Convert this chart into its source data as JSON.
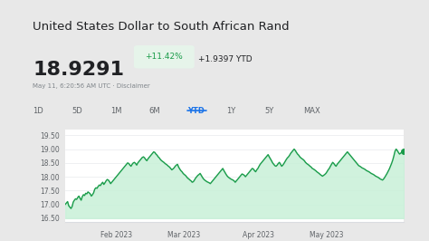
{
  "title": "United States Dollar to South African Rand",
  "current_value": "18.9291",
  "pct_change": "+11.42%",
  "abs_change": "+1.9397 YTD",
  "date_label": "May 11, 6:20:56 AM UTC · Disclaimer",
  "tabs": [
    "1D",
    "5D",
    "1M",
    "6M",
    "YTD",
    "1Y",
    "5Y",
    "MAX"
  ],
  "active_tab": "YTD",
  "x_labels": [
    "Feb 2023",
    "Mar 2023",
    "Apr 2023",
    "May 2023"
  ],
  "y_ticks": [
    16.5,
    17.0,
    17.5,
    18.0,
    18.5,
    19.0,
    19.5
  ],
  "ylim": [
    16.35,
    19.7
  ],
  "line_color": "#1a9c4a",
  "fill_color": "#c8f0d8",
  "dot_color": "#1a9c4a",
  "background_color": "#ffffff",
  "outer_background": "#e8e8e8",
  "tab_active_color": "#1a73e8",
  "pct_badge_bg": "#e6f4ea",
  "pct_badge_color": "#1a9c4a",
  "y_values": [
    17.0,
    17.05,
    17.1,
    16.95,
    16.9,
    16.85,
    16.92,
    17.08,
    17.15,
    17.2,
    17.18,
    17.25,
    17.3,
    17.22,
    17.15,
    17.28,
    17.35,
    17.32,
    17.4,
    17.38,
    17.45,
    17.42,
    17.38,
    17.3,
    17.35,
    17.42,
    17.55,
    17.6,
    17.58,
    17.65,
    17.7,
    17.68,
    17.75,
    17.8,
    17.72,
    17.78,
    17.85,
    17.9,
    17.88,
    17.82,
    17.75,
    17.8,
    17.85,
    17.9,
    17.95,
    18.0,
    18.05,
    18.1,
    18.15,
    18.2,
    18.25,
    18.3,
    18.35,
    18.4,
    18.45,
    18.5,
    18.48,
    18.42,
    18.38,
    18.45,
    18.5,
    18.52,
    18.48,
    18.42,
    18.5,
    18.55,
    18.6,
    18.65,
    18.7,
    18.72,
    18.68,
    18.62,
    18.58,
    18.65,
    18.7,
    18.75,
    18.8,
    18.85,
    18.9,
    18.88,
    18.82,
    18.78,
    18.72,
    18.68,
    18.62,
    18.58,
    18.55,
    18.52,
    18.48,
    18.45,
    18.42,
    18.38,
    18.35,
    18.3,
    18.25,
    18.28,
    18.32,
    18.38,
    18.42,
    18.45,
    18.35,
    18.28,
    18.22,
    18.18,
    18.12,
    18.08,
    18.05,
    18.0,
    17.95,
    17.92,
    17.88,
    17.85,
    17.8,
    17.82,
    17.88,
    17.95,
    18.0,
    18.05,
    18.08,
    18.12,
    18.05,
    17.98,
    17.92,
    17.88,
    17.85,
    17.82,
    17.8,
    17.78,
    17.75,
    17.8,
    17.85,
    17.9,
    17.95,
    18.0,
    18.05,
    18.1,
    18.15,
    18.2,
    18.25,
    18.3,
    18.22,
    18.15,
    18.08,
    18.02,
    17.98,
    17.95,
    17.92,
    17.9,
    17.88,
    17.85,
    17.8,
    17.85,
    17.9,
    17.95,
    18.0,
    18.05,
    18.1,
    18.08,
    18.05,
    18.0,
    18.05,
    18.1,
    18.15,
    18.2,
    18.25,
    18.3,
    18.28,
    18.22,
    18.18,
    18.25,
    18.3,
    18.38,
    18.45,
    18.5,
    18.55,
    18.6,
    18.65,
    18.7,
    18.75,
    18.8,
    18.72,
    18.65,
    18.58,
    18.5,
    18.45,
    18.4,
    18.38,
    18.42,
    18.48,
    18.52,
    18.45,
    18.38,
    18.42,
    18.48,
    18.55,
    18.62,
    18.68,
    18.72,
    18.78,
    18.85,
    18.9,
    18.95,
    19.0,
    18.95,
    18.88,
    18.82,
    18.78,
    18.72,
    18.68,
    18.65,
    18.62,
    18.58,
    18.52,
    18.48,
    18.45,
    18.42,
    18.38,
    18.35,
    18.3,
    18.28,
    18.25,
    18.22,
    18.18,
    18.15,
    18.12,
    18.08,
    18.05,
    18.02,
    18.05,
    18.08,
    18.12,
    18.18,
    18.25,
    18.3,
    18.38,
    18.45,
    18.52,
    18.48,
    18.42,
    18.38,
    18.45,
    18.5,
    18.55,
    18.6,
    18.65,
    18.7,
    18.75,
    18.8,
    18.85,
    18.9,
    18.85,
    18.8,
    18.75,
    18.7,
    18.65,
    18.6,
    18.55,
    18.5,
    18.45,
    18.4,
    18.38,
    18.35,
    18.32,
    18.3,
    18.28,
    18.25,
    18.22,
    18.2,
    18.18,
    18.15,
    18.12,
    18.1,
    18.08,
    18.05,
    18.02,
    18.0,
    17.98,
    17.95,
    17.92,
    17.9,
    17.88,
    17.92,
    17.98,
    18.05,
    18.12,
    18.2,
    18.28,
    18.38,
    18.48,
    18.6,
    18.75,
    18.92,
    19.0,
    18.95,
    18.88,
    18.82,
    18.85,
    18.9,
    18.95,
    18.93
  ],
  "x_tick_positions": [
    0.15,
    0.35,
    0.57,
    0.77
  ]
}
